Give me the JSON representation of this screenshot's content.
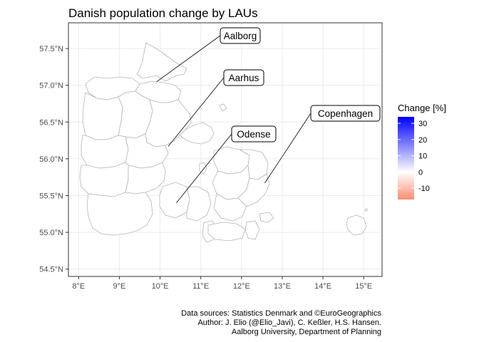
{
  "title": "Danish population change by LAUs",
  "x_axis": {
    "ticks": [
      "8°E",
      "9°E",
      "10°E",
      "11°E",
      "12°E",
      "13°E",
      "14°E",
      "15°E"
    ],
    "values": [
      8,
      9,
      10,
      11,
      12,
      13,
      14,
      15
    ],
    "range": [
      7.75,
      15.45
    ]
  },
  "y_axis": {
    "ticks": [
      "54.5°N",
      "55.0°N",
      "55.5°N",
      "56.0°N",
      "56.5°N",
      "57.0°N",
      "57.5°N"
    ],
    "values": [
      54.5,
      55.0,
      55.5,
      56.0,
      56.5,
      57.0,
      57.5
    ],
    "range": [
      54.4,
      57.85
    ]
  },
  "labels": [
    {
      "name": "Aalborg",
      "lon": 9.92,
      "lat": 57.05
    },
    {
      "name": "Aarhus",
      "lon": 10.2,
      "lat": 56.17
    },
    {
      "name": "Odense",
      "lon": 10.4,
      "lat": 55.4
    },
    {
      "name": "Copenhagen",
      "lon": 12.57,
      "lat": 55.67
    }
  ],
  "legend": {
    "title": "Change [%]",
    "ticks": [
      "30",
      "20",
      "10",
      "0",
      "-10"
    ],
    "values": [
      30,
      20,
      10,
      0,
      -10
    ],
    "range": [
      -17,
      34
    ],
    "colors": {
      "low": "#fb8d74",
      "mid": "#ffffff",
      "high": "#0000ff"
    }
  },
  "caption": [
    "Data sources: Statistics Denmark and ©EuroGeographics",
    "Author: J. Elio (@Elio_Javi), C. Keßler, H.S. Hansen.",
    "Aalborg University, Department of Planning"
  ],
  "colors": {
    "municipality_border": "#b5b5b5",
    "grid": "#ebebeb",
    "panel_border": "#333333"
  }
}
